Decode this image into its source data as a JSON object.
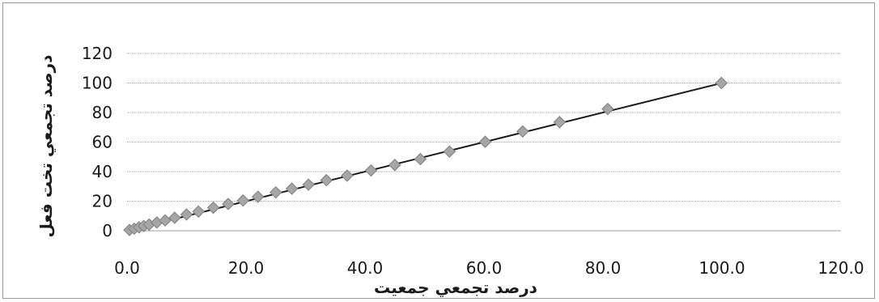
{
  "chart_data": {
    "type": "scatter",
    "xlabel": "درصد تجمعي جمعيت",
    "ylabel": "درصد تجمعي تخت فعل",
    "xlim": [
      0,
      120
    ],
    "ylim": [
      0,
      120
    ],
    "x_ticks": [
      "0.0",
      "20.0",
      "40.0",
      "60.0",
      "80.0",
      "100.0",
      "120.0"
    ],
    "y_ticks": [
      "0",
      "20",
      "40",
      "60",
      "80",
      "100",
      "120"
    ],
    "grid": "horizontal",
    "colors": {
      "marker": "#a6a6a6",
      "marker_stroke": "#7f7f7f",
      "line": "#1a1a1a",
      "grid": "#a0a0a0"
    },
    "series": [
      {
        "marker": "diamond",
        "x": [
          0.4,
          1.2,
          2.0,
          2.8,
          3.7,
          5.0,
          6.4,
          8.0,
          10.0,
          12.0,
          14.5,
          17.0,
          19.5,
          22.0,
          25.0,
          27.7,
          30.5,
          33.5,
          37.0,
          41.0,
          45.0,
          49.3,
          54.2,
          60.2,
          66.5,
          72.7,
          80.8,
          99.9
        ],
        "y": [
          0.5,
          1.4,
          2.3,
          3.2,
          4.2,
          5.6,
          7.0,
          8.8,
          11.0,
          13.0,
          15.6,
          18.1,
          20.5,
          23.0,
          26.0,
          28.5,
          31.2,
          34.2,
          37.3,
          40.8,
          44.5,
          48.5,
          53.6,
          60.2,
          67.2,
          73.5,
          82.4,
          100.0
        ]
      }
    ],
    "trendline": {
      "x": [
        0,
        100
      ],
      "y": [
        0,
        100
      ]
    }
  }
}
